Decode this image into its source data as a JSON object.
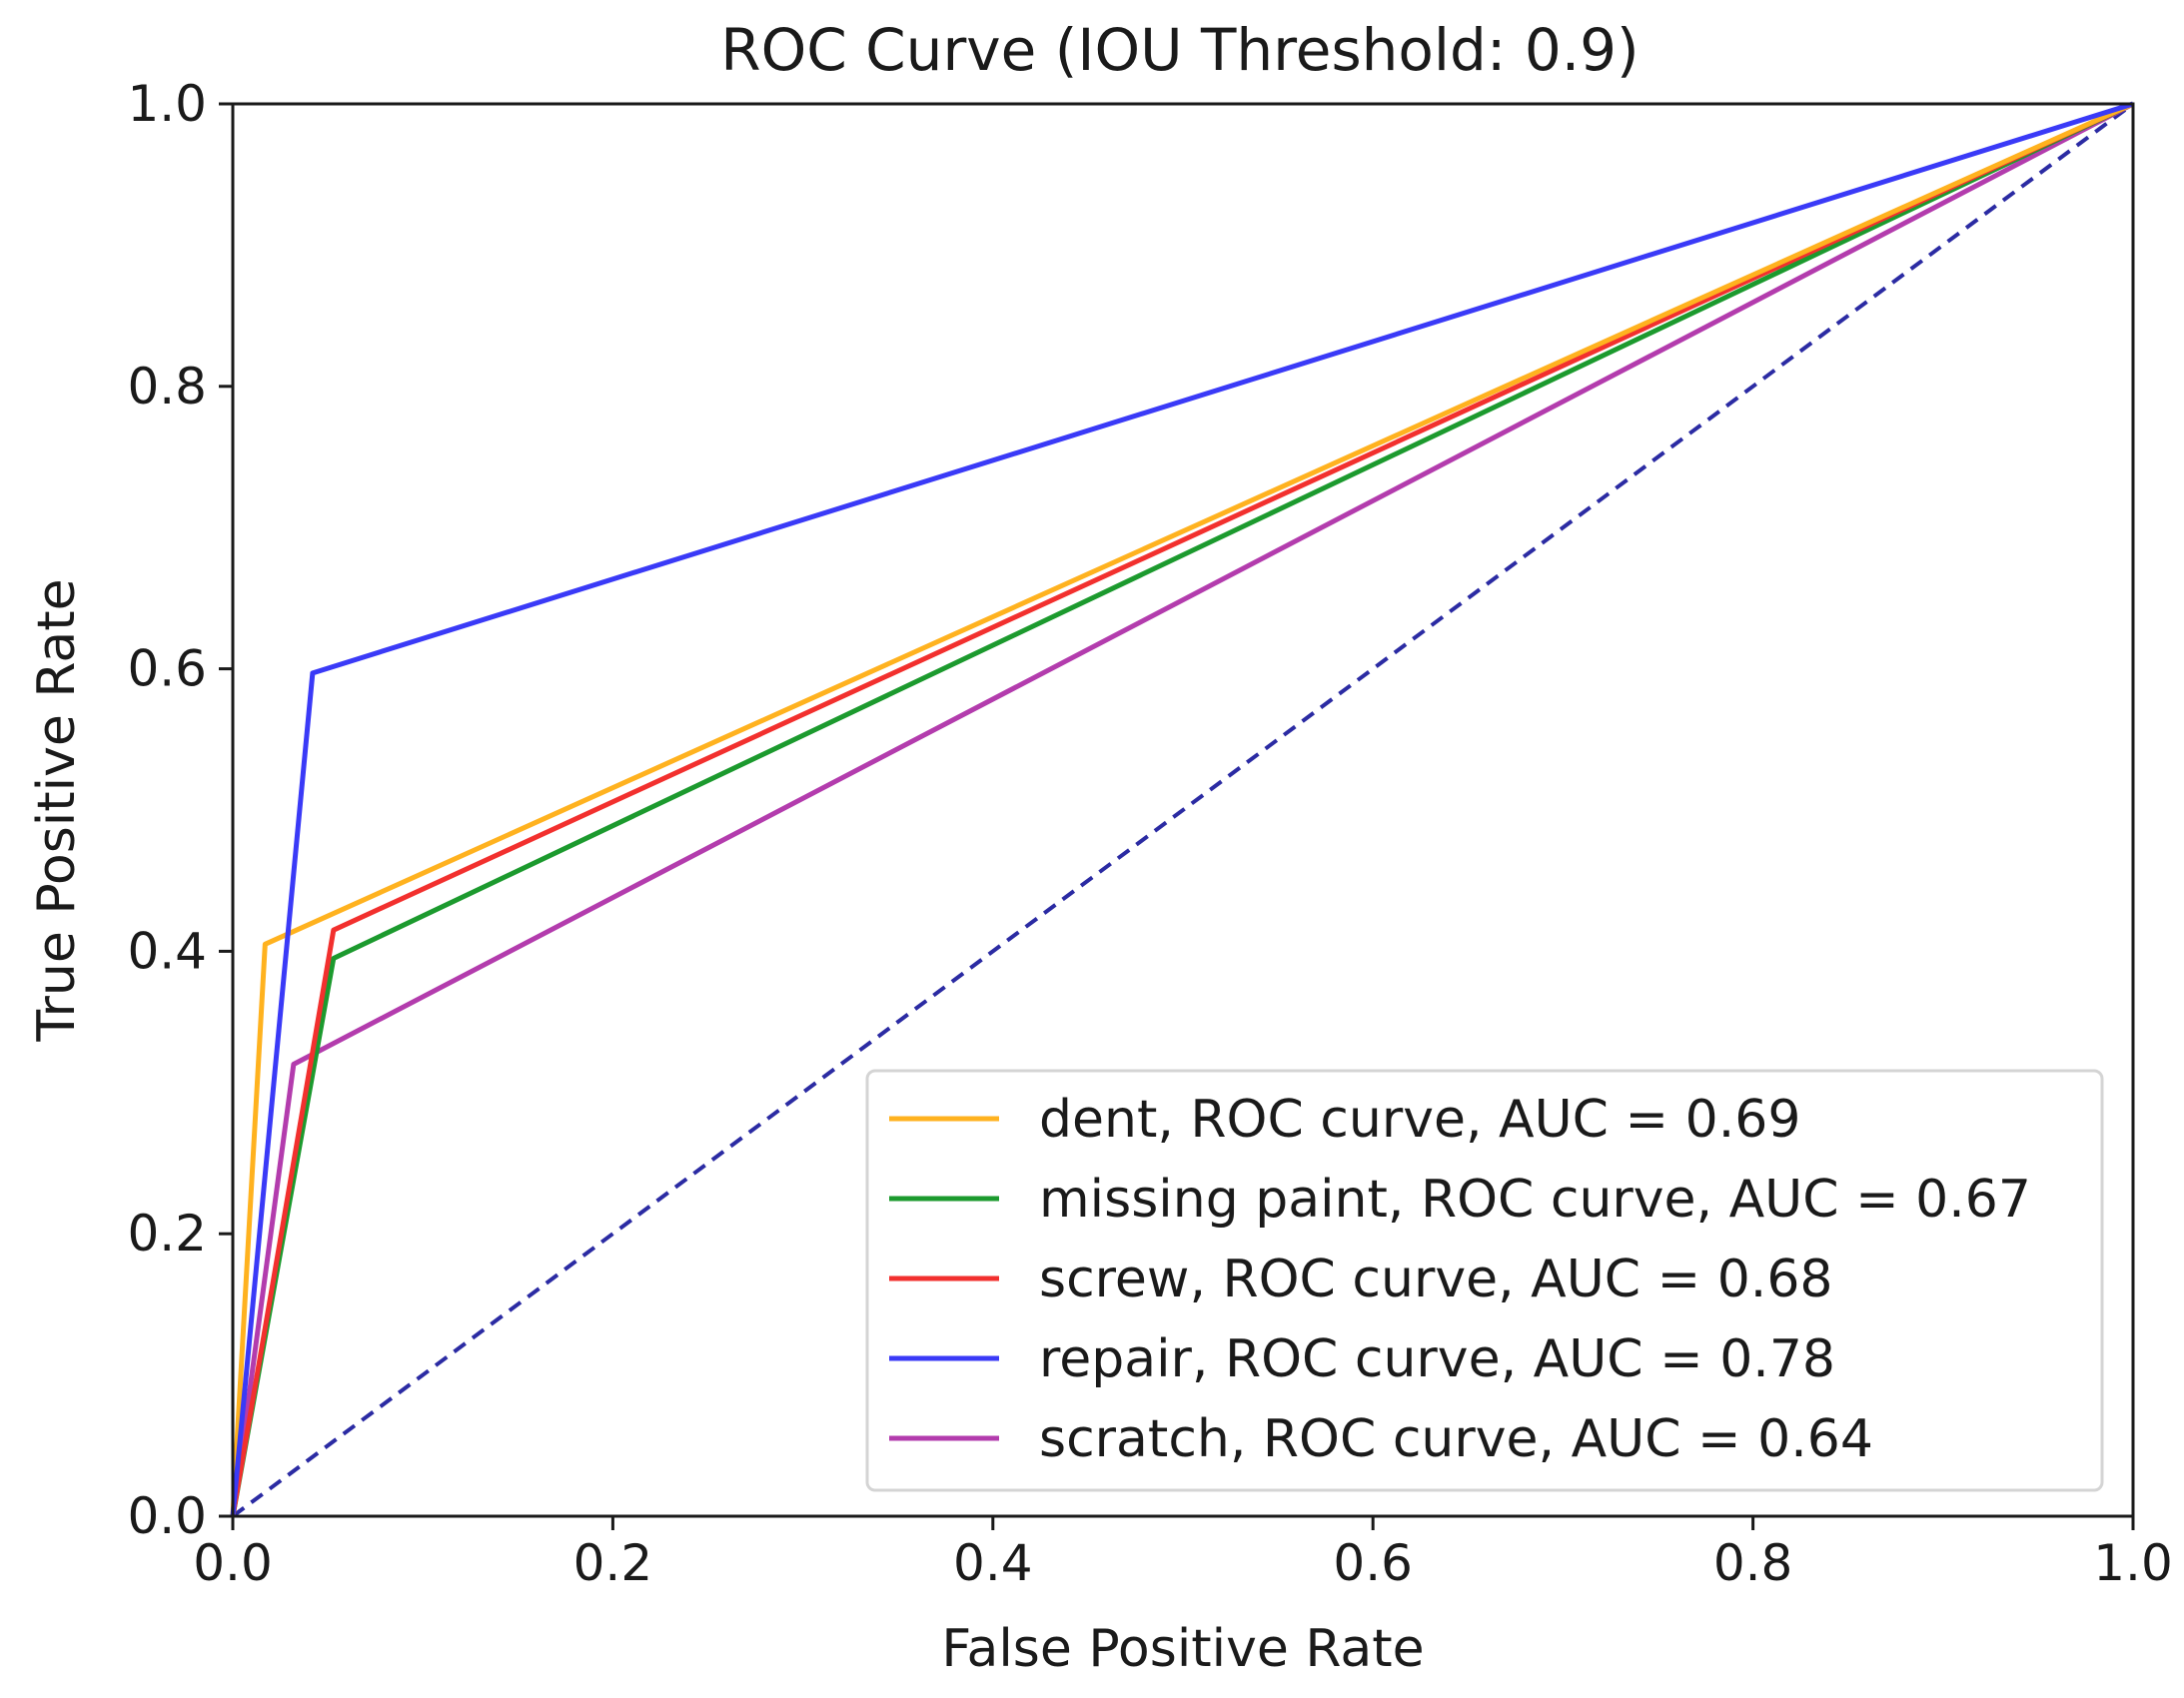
{
  "chart_data": {
    "type": "line",
    "title": "ROC Curve (IOU Threshold: 0.9)",
    "xlabel": "False Positive Rate",
    "ylabel": "True Positive Rate",
    "xlim": [
      0.0,
      1.0
    ],
    "ylim": [
      0.0,
      1.0
    ],
    "xticks": [
      0.0,
      0.2,
      0.4,
      0.6,
      0.8,
      1.0
    ],
    "yticks": [
      0.0,
      0.2,
      0.4,
      0.6,
      0.8,
      1.0
    ],
    "xtick_labels": [
      "0.0",
      "0.2",
      "0.4",
      "0.6",
      "0.8",
      "1.0"
    ],
    "ytick_labels": [
      "0.0",
      "0.2",
      "0.4",
      "0.6",
      "0.8",
      "1.0"
    ],
    "grid": false,
    "legend_position": "lower-right",
    "series": [
      {
        "name": "dent, ROC curve, AUC = 0.69",
        "color": "#ffb21f",
        "x": [
          0.0,
          0.017,
          1.0
        ],
        "y": [
          0.0,
          0.405,
          1.0
        ]
      },
      {
        "name": "missing  paint, ROC curve, AUC = 0.67",
        "color": "#1c9a2e",
        "x": [
          0.0,
          0.053,
          1.0
        ],
        "y": [
          0.0,
          0.395,
          1.0
        ]
      },
      {
        "name": "screw, ROC curve, AUC = 0.68",
        "color": "#f2302e",
        "x": [
          0.0,
          0.053,
          1.0
        ],
        "y": [
          0.0,
          0.415,
          1.0
        ]
      },
      {
        "name": "repair, ROC curve, AUC = 0.78",
        "color": "#3a3af7",
        "x": [
          0.0,
          0.042,
          1.0
        ],
        "y": [
          0.0,
          0.597,
          1.0
        ]
      },
      {
        "name": "scratch, ROC curve, AUC = 0.64",
        "color": "#b33cad",
        "x": [
          0.0,
          0.032,
          1.0
        ],
        "y": [
          0.0,
          0.32,
          1.0
        ]
      }
    ],
    "reference_line": {
      "name": "diagonal-reference",
      "color": "#2b2ba3",
      "style": "dashed",
      "x": [
        0.0,
        1.0
      ],
      "y": [
        0.0,
        1.0
      ]
    }
  }
}
